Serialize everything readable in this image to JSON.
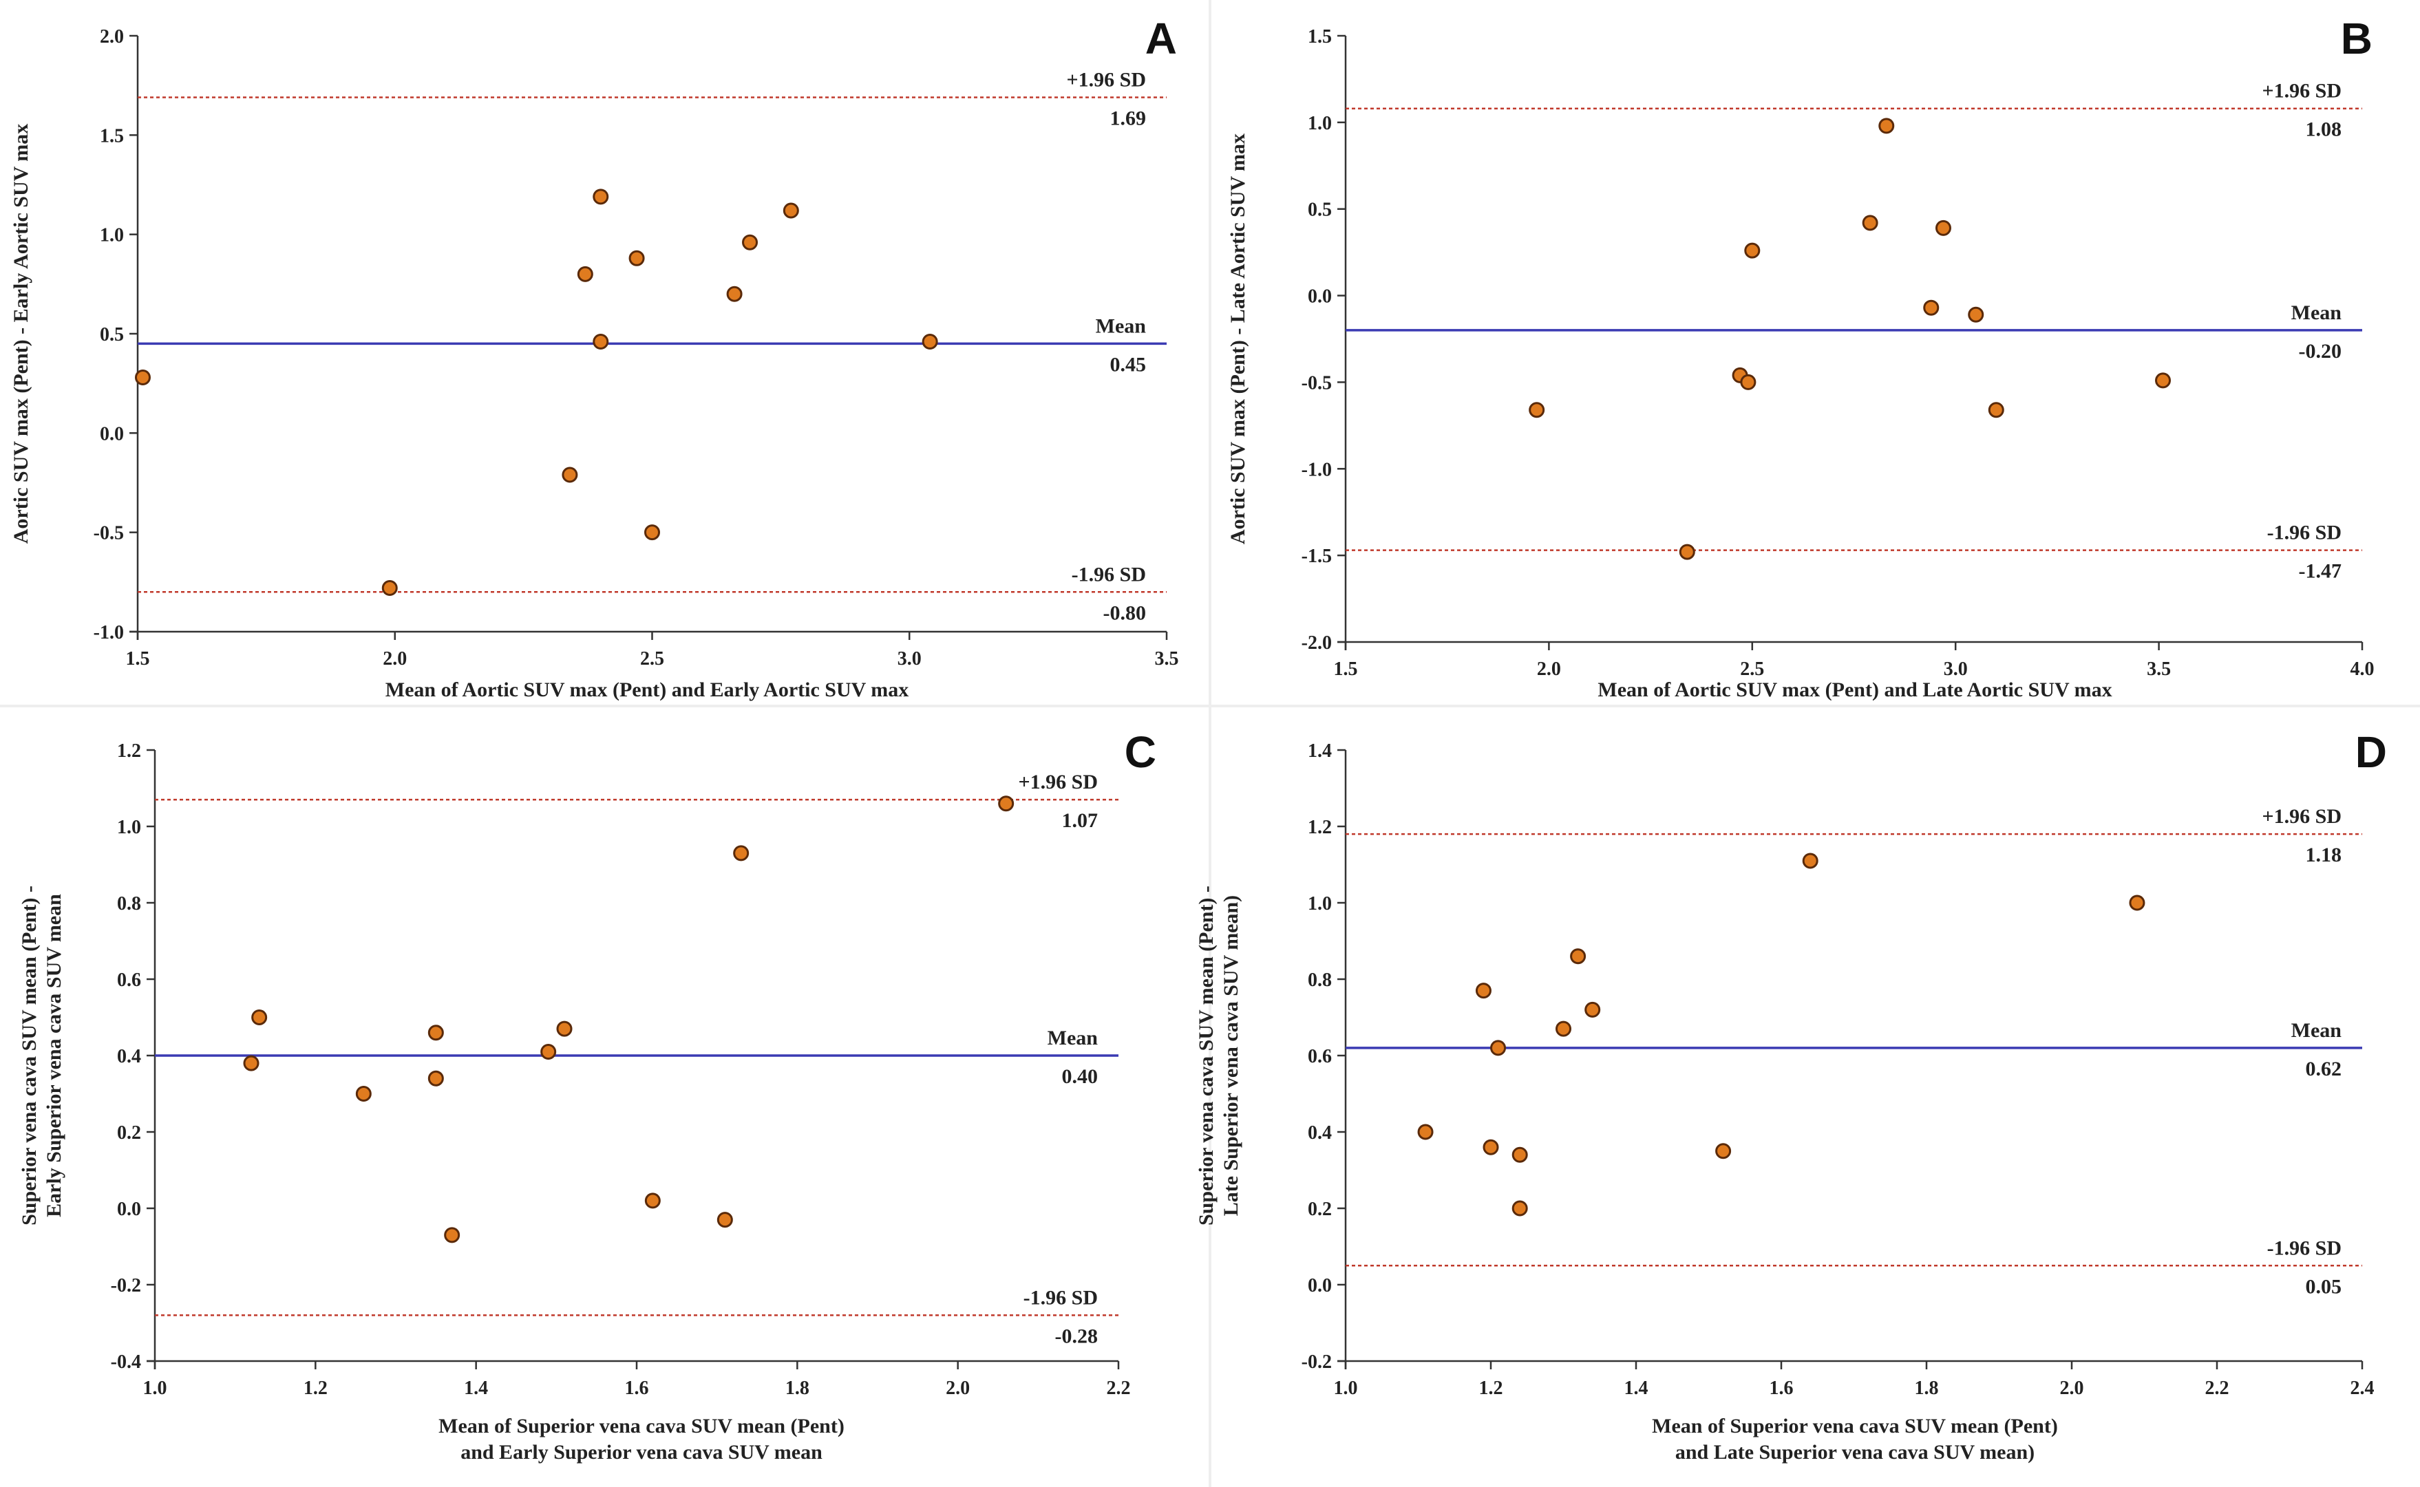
{
  "chart_data": [
    {
      "type": "scatter",
      "panel": "A",
      "xlabel": [
        "Mean of Aortic SUV max (Pent) and Early Aortic SUV max"
      ],
      "ylabel": [
        "Aortic SUV max (Pent) - Early Aortic SUV max"
      ],
      "xlim": [
        1.5,
        3.5
      ],
      "ylim": [
        -1.0,
        2.0
      ],
      "xticks": [
        "1.5",
        "2.0",
        "2.5",
        "3.0",
        "3.5"
      ],
      "yticks": [
        "-1.0",
        "-0.5",
        "0.0",
        "0.5",
        "1.0",
        "1.5",
        "2.0"
      ],
      "mean": {
        "label": "Mean",
        "value": 0.45,
        "value_label": "0.45"
      },
      "upper": {
        "label": "+1.96 SD",
        "value": 1.69,
        "value_label": "1.69"
      },
      "lower": {
        "label": "-1.96 SD",
        "value": -0.8,
        "value_label": "-0.80"
      },
      "points": [
        [
          1.51,
          0.28
        ],
        [
          1.99,
          -0.78
        ],
        [
          2.34,
          -0.21
        ],
        [
          2.37,
          0.8
        ],
        [
          2.4,
          1.19
        ],
        [
          2.4,
          0.46
        ],
        [
          2.47,
          0.88
        ],
        [
          2.5,
          -0.5
        ],
        [
          2.66,
          0.7
        ],
        [
          2.69,
          0.96
        ],
        [
          2.77,
          1.12
        ],
        [
          3.04,
          0.46
        ]
      ]
    },
    {
      "type": "scatter",
      "panel": "B",
      "xlabel": [
        "Mean of Aortic SUV max (Pent) and Late Aortic SUV max"
      ],
      "ylabel": [
        "Aortic SUV max (Pent) - Late Aortic SUV max"
      ],
      "xlim": [
        1.5,
        4.0
      ],
      "ylim": [
        -2.0,
        1.5
      ],
      "xticks": [
        "1.5",
        "2.0",
        "2.5",
        "3.0",
        "3.5",
        "4.0"
      ],
      "yticks": [
        "-2.0",
        "-1.5",
        "-1.0",
        "-0.5",
        "0.0",
        "0.5",
        "1.0",
        "1.5"
      ],
      "mean": {
        "label": "Mean",
        "value": -0.2,
        "value_label": "-0.20"
      },
      "upper": {
        "label": "+1.96 SD",
        "value": 1.08,
        "value_label": "1.08"
      },
      "lower": {
        "label": "-1.96 SD",
        "value": -1.47,
        "value_label": "-1.47"
      },
      "points": [
        [
          1.97,
          -0.66
        ],
        [
          2.34,
          -1.48
        ],
        [
          2.47,
          -0.46
        ],
        [
          2.49,
          -0.5
        ],
        [
          2.5,
          0.26
        ],
        [
          2.79,
          0.42
        ],
        [
          2.83,
          0.98
        ],
        [
          2.94,
          -0.07
        ],
        [
          2.97,
          0.39
        ],
        [
          3.05,
          -0.11
        ],
        [
          3.1,
          -0.66
        ],
        [
          3.51,
          -0.49
        ]
      ]
    },
    {
      "type": "scatter",
      "panel": "C",
      "xlabel": [
        "Mean of Superior vena cava SUV mean (Pent)",
        "and Early Superior vena cava SUV mean"
      ],
      "ylabel": [
        "Superior vena cava SUV mean (Pent) -",
        "Early Superior vena cava SUV mean"
      ],
      "xlim": [
        1.0,
        2.2
      ],
      "ylim": [
        -0.4,
        1.2
      ],
      "xticks": [
        "1.0",
        "1.2",
        "1.4",
        "1.6",
        "1.8",
        "2.0",
        "2.2"
      ],
      "yticks": [
        "-0.4",
        "-0.2",
        "0.0",
        "0.2",
        "0.4",
        "0.6",
        "0.8",
        "1.0",
        "1.2"
      ],
      "mean": {
        "label": "Mean",
        "value": 0.4,
        "value_label": "0.40"
      },
      "upper": {
        "label": "+1.96 SD",
        "value": 1.07,
        "value_label": "1.07"
      },
      "lower": {
        "label": "-1.96 SD",
        "value": -0.28,
        "value_label": "-0.28"
      },
      "points": [
        [
          1.12,
          0.38
        ],
        [
          1.13,
          0.5
        ],
        [
          1.26,
          0.3
        ],
        [
          1.35,
          0.46
        ],
        [
          1.35,
          0.34
        ],
        [
          1.37,
          -0.07
        ],
        [
          1.49,
          0.41
        ],
        [
          1.51,
          0.47
        ],
        [
          1.62,
          0.02
        ],
        [
          1.71,
          -0.03
        ],
        [
          1.73,
          0.93
        ],
        [
          2.06,
          1.06
        ]
      ]
    },
    {
      "type": "scatter",
      "panel": "D",
      "xlabel": [
        "Mean of Superior vena cava SUV mean (Pent)",
        "and Late Superior vena cava SUV mean)"
      ],
      "ylabel": [
        "Superior vena cava SUV mean (Pent) -",
        "Late Superior vena cava SUV mean)"
      ],
      "xlim": [
        1.0,
        2.4
      ],
      "ylim": [
        -0.2,
        1.4
      ],
      "xticks": [
        "1.0",
        "1.2",
        "1.4",
        "1.6",
        "1.8",
        "2.0",
        "2.2",
        "2.4"
      ],
      "yticks": [
        "-0.2",
        "0.0",
        "0.2",
        "0.4",
        "0.6",
        "0.8",
        "1.0",
        "1.2",
        "1.4"
      ],
      "mean": {
        "label": "Mean",
        "value": 0.62,
        "value_label": "0.62"
      },
      "upper": {
        "label": "+1.96 SD",
        "value": 1.18,
        "value_label": "1.18"
      },
      "lower": {
        "label": "-1.96 SD",
        "value": 0.05,
        "value_label": "0.05"
      },
      "points": [
        [
          1.11,
          0.4
        ],
        [
          1.19,
          0.77
        ],
        [
          1.2,
          0.36
        ],
        [
          1.21,
          0.62
        ],
        [
          1.24,
          0.34
        ],
        [
          1.24,
          0.2
        ],
        [
          1.3,
          0.67
        ],
        [
          1.32,
          0.86
        ],
        [
          1.34,
          0.72
        ],
        [
          1.52,
          0.35
        ],
        [
          1.64,
          1.11
        ],
        [
          2.09,
          1.0
        ]
      ]
    }
  ],
  "colors": {
    "mean_line": "#3b3bb3",
    "sd_line": "#c0392b",
    "point_fill": "#e07b1f",
    "point_edge": "#5a2a0a",
    "axis": "#333333",
    "panel_border": "#e6e6e6"
  }
}
